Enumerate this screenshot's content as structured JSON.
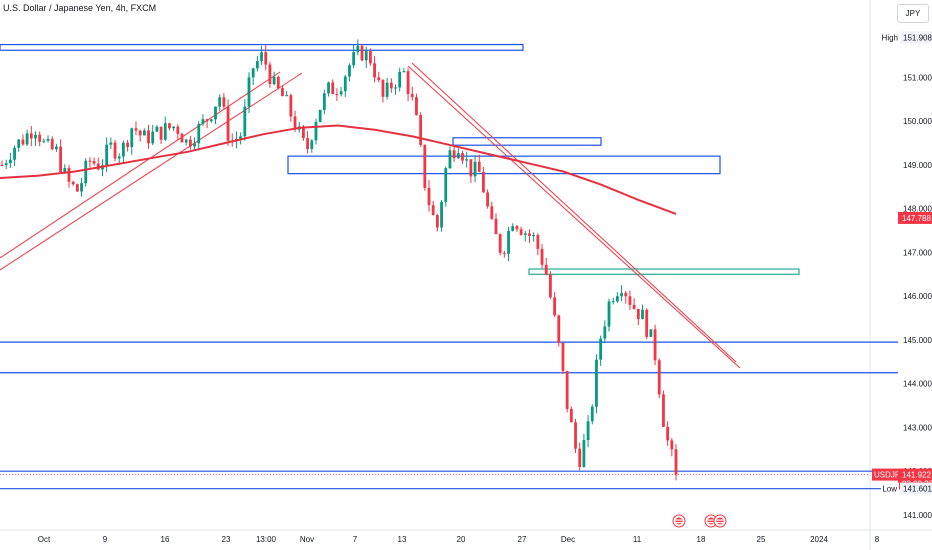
{
  "header": {
    "symbol_title": "U.S. Dollar / Japanese Yen, 4h, FXCM",
    "currency_button": "JPY"
  },
  "chart_data": {
    "type": "candlestick",
    "symbol": "USDJPY",
    "timeframe": "4h",
    "source": "FXCM",
    "x_ticks": [
      "Oct",
      "9",
      "16",
      "23",
      "13:00",
      "Nov",
      "7",
      "13",
      "20",
      "27",
      "Dec",
      "11",
      "18",
      "25",
      "2024",
      "8"
    ],
    "y_ticks": [
      141.0,
      142.0,
      143.0,
      144.0,
      145.0,
      146.0,
      147.0,
      148.0,
      149.0,
      150.0,
      151.0
    ],
    "ylim": [
      140.85,
      152.3
    ],
    "price_path": [
      149.0,
      149.4,
      149.6,
      149.9,
      149.4,
      149.3,
      148.6,
      148.4,
      149.1,
      149.0,
      149.4,
      149.3,
      149.9,
      149.6,
      149.7,
      149.8,
      149.9,
      149.5,
      149.8,
      150.1,
      150.6,
      149.5,
      149.7,
      151.2,
      151.5,
      150.8,
      150.5,
      149.9,
      149.3,
      150.2,
      150.7,
      150.8,
      151.3,
      151.6,
      151.4,
      150.5,
      150.9,
      151.1,
      150.2,
      148.4,
      147.5,
      149.2,
      149.5,
      148.9,
      148.8,
      147.6,
      147.0,
      147.8,
      147.5,
      147.3,
      146.6,
      145.2,
      143.5,
      142.2,
      143.0,
      145.0,
      146.0,
      146.3,
      145.8,
      145.5,
      144.8,
      142.9,
      141.92
    ],
    "moving_average": [
      148.7,
      148.75,
      148.85,
      149.0,
      149.15,
      149.3,
      149.5,
      149.7,
      149.85,
      149.9,
      149.8,
      149.65,
      149.45,
      149.25,
      149.05,
      148.85,
      148.55,
      148.2,
      147.88
    ],
    "current_price": {
      "label": "USDJPY",
      "value": "141.922",
      "countdown": "03:09:38",
      "color": "#f23645"
    },
    "ma_price": {
      "value": "147.788",
      "color": "#f23645"
    },
    "high": {
      "label": "High",
      "value": "151.908"
    },
    "low": {
      "label": "Low",
      "value": "141.601"
    },
    "horizontal_levels": [
      144.95,
      144.25,
      142.0,
      141.6
    ],
    "zones": [
      {
        "from": 151.62,
        "to": 151.75,
        "color": "#1e53e5"
      },
      {
        "from": 149.45,
        "to": 149.62,
        "color": "#1e53e5"
      },
      {
        "from": 148.8,
        "to": 149.2,
        "color": "#1e53e5"
      },
      {
        "from": 146.5,
        "to": 146.62,
        "color": "#22ab94"
      }
    ],
    "colors": {
      "up": "#089981",
      "down": "#f23645",
      "ma": "#e5303f",
      "levels": "#1e53e5",
      "zone_alt": "#22ab94",
      "trendline": "#f23645"
    }
  }
}
